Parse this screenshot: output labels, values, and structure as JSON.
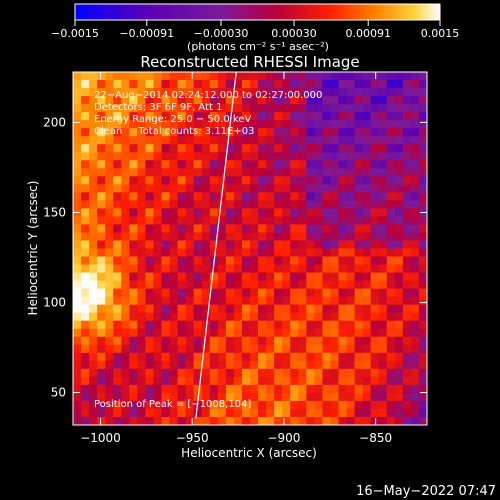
{
  "chart_data": {
    "type": "heatmap",
    "title": "Reconstructed RHESSI Image",
    "xlabel": "Heliocentric X (arcsec)",
    "ylabel": "Heliocentric Y (arcsec)",
    "xlim": [
      -1015,
      -822
    ],
    "ylim": [
      32,
      228
    ],
    "x_ticks": [
      -1000,
      -950,
      -900,
      -850
    ],
    "x_tick_labels": [
      "−1000",
      "−950",
      "−900",
      "−850"
    ],
    "y_ticks": [
      50,
      100,
      150,
      200
    ],
    "y_tick_labels": [
      "50",
      "100",
      "150",
      "200"
    ],
    "colorbar": {
      "min": -0.0015,
      "max": 0.0015,
      "ticks": [
        -0.0015,
        -0.00091,
        -0.0003,
        0.0003,
        0.00091,
        0.0015
      ],
      "tick_labels": [
        "−0.0015",
        "−0.00091",
        "−0.00030",
        "0.00030",
        "0.00091",
        "0.0015"
      ],
      "units_label": "(photons cm⁻² s⁻¹ asec⁻²)",
      "colors": [
        "#0000ff",
        "#5a00b4",
        "#7a1a9a",
        "#b8003a",
        "#ff2000",
        "#ff8000",
        "#ffd23c",
        "#ffffff"
      ]
    },
    "annotations": [
      "22−Aug−2014 02:24:12.000 to 02:27:00.000",
      "Detectors: 3F 6F 9F, Att 1",
      "Energy Range: 25.0 − 50.0 keV",
      "Clean     Total counts: 3.11E+03"
    ],
    "peak_label": "Position of Peak = [−1008,104]",
    "peak": [
      -1008,
      104
    ],
    "limb_line": [
      [
        -948,
        36
      ],
      [
        -926,
        228
      ]
    ],
    "grid": false
  },
  "footer": {
    "timestamp": "16−May−2022 07:47"
  }
}
